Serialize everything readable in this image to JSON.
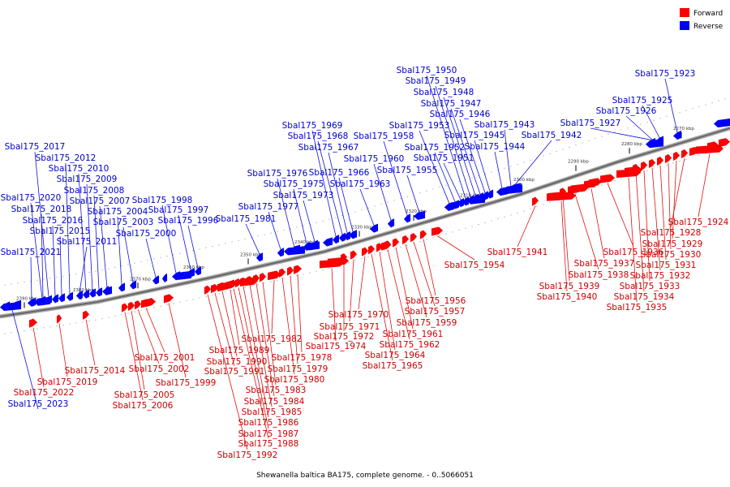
{
  "caption": "Shewanella baltica BA175, complete genome. - 0..5066051",
  "legend": [
    {
      "label": "Forward",
      "color": "#ff0000"
    },
    {
      "label": "Reverse",
      "color": "#0000ff"
    }
  ],
  "colors": {
    "forward": "#ff0000",
    "reverse": "#0000ff",
    "axis": "#666666"
  },
  "ticks": [
    "2270 kbp",
    "2280 kbp",
    "2290 kbp",
    "2300 kbp",
    "2310 kbp",
    "2320 kbp",
    "2330 kbp",
    "2340 kbp",
    "2350 kbp",
    "2360 kbp",
    "2370 kbp",
    "2380 kbp",
    "2390 kbp"
  ],
  "genes_reverse": [
    "Sbal175_1923",
    "Sbal175_1925",
    "Sbal175_1926",
    "Sbal175_1927",
    "Sbal175_1942",
    "Sbal175_1943",
    "Sbal175_1944",
    "Sbal175_1945",
    "Sbal175_1946",
    "Sbal175_1947",
    "Sbal175_1948",
    "Sbal175_1949",
    "Sbal175_1950",
    "Sbal175_1951",
    "Sbal175_1952",
    "Sbal175_1953",
    "Sbal175_1955",
    "Sbal175_1958",
    "Sbal175_1960",
    "Sbal175_1963",
    "Sbal175_1966",
    "Sbal175_1967",
    "Sbal175_1968",
    "Sbal175_1969",
    "Sbal175_1973",
    "Sbal175_1975",
    "Sbal175_1976",
    "Sbal175_1977",
    "Sbal175_1981",
    "Sbal175_1996",
    "Sbal175_1997",
    "Sbal175_1998",
    "Sbal175_2000",
    "Sbal175_2003",
    "Sbal175_2004",
    "Sbal175_2007",
    "Sbal175_2008",
    "Sbal175_2009",
    "Sbal175_2010",
    "Sbal175_2011",
    "Sbal175_2012",
    "Sbal175_2015",
    "Sbal175_2016",
    "Sbal175_2017",
    "Sbal175_2018",
    "Sbal175_2020",
    "Sbal175_2021",
    "Sbal175_2023"
  ],
  "genes_forward": [
    "Sbal175_1924",
    "Sbal175_1928",
    "Sbal175_1929",
    "Sbal175_1930",
    "Sbal175_1931",
    "Sbal175_1932",
    "Sbal175_1933",
    "Sbal175_1934",
    "Sbal175_1935",
    "Sbal175_1936",
    "Sbal175_1937",
    "Sbal175_1938",
    "Sbal175_1939",
    "Sbal175_1940",
    "Sbal175_1941",
    "Sbal175_1954",
    "Sbal175_1956",
    "Sbal175_1957",
    "Sbal175_1959",
    "Sbal175_1961",
    "Sbal175_1962",
    "Sbal175_1964",
    "Sbal175_1965",
    "Sbal175_1970",
    "Sbal175_1971",
    "Sbal175_1972",
    "Sbal175_1974",
    "Sbal175_1978",
    "Sbal175_1979",
    "Sbal175_1980",
    "Sbal175_1982",
    "Sbal175_1983",
    "Sbal175_1984",
    "Sbal175_1985",
    "Sbal175_1986",
    "Sbal175_1987",
    "Sbal175_1988",
    "Sbal175_1989",
    "Sbal175_1990",
    "Sbal175_1991",
    "Sbal175_1992",
    "Sbal175_1999",
    "Sbal175_2001",
    "Sbal175_2002",
    "Sbal175_2005",
    "Sbal175_2006",
    "Sbal175_2014",
    "Sbal175_2019",
    "Sbal175_2022"
  ]
}
